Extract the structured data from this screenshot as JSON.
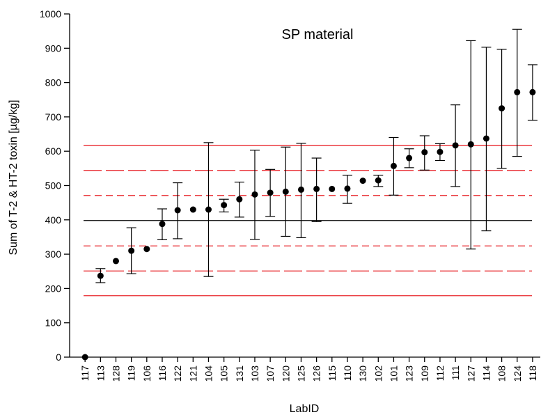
{
  "chart_data": {
    "type": "scatter",
    "title": "",
    "annotation": "SP material",
    "xlabel": "LabID",
    "ylabel": "Sum of T-2 & HT-2 toxin [µg/kg]",
    "ylim": [
      0,
      1000
    ],
    "yticks": [
      0,
      100,
      200,
      300,
      400,
      500,
      600,
      700,
      800,
      900,
      1000
    ],
    "grid": false,
    "categories": [
      "117",
      "113",
      "128",
      "119",
      "106",
      "116",
      "122",
      "121",
      "104",
      "105",
      "131",
      "103",
      "107",
      "120",
      "125",
      "126",
      "115",
      "110",
      "130",
      "102",
      "101",
      "123",
      "109",
      "112",
      "111",
      "127",
      "114",
      "108",
      "124",
      "118"
    ],
    "series": [
      {
        "values": [
          0,
          237,
          280,
          310,
          315,
          388,
          428,
          430,
          430,
          443,
          460,
          474,
          479,
          482,
          488,
          490,
          490,
          491,
          514,
          515,
          557,
          580,
          597,
          598,
          617,
          620,
          637,
          725,
          772,
          772
        ],
        "error_low": [
          null,
          217,
          null,
          243,
          null,
          342,
          345,
          null,
          235,
          423,
          408,
          343,
          410,
          352,
          348,
          395,
          null,
          448,
          null,
          497,
          472,
          552,
          545,
          573,
          497,
          315,
          368,
          550,
          585,
          690
        ],
        "error_high": [
          null,
          258,
          null,
          377,
          null,
          432,
          508,
          null,
          625,
          460,
          510,
          603,
          547,
          612,
          623,
          580,
          null,
          530,
          null,
          530,
          640,
          607,
          645,
          622,
          735,
          922,
          903,
          897,
          955,
          852
        ]
      }
    ],
    "reference_lines": [
      {
        "value": 398,
        "style": "solid",
        "color": "#000000"
      },
      {
        "value": 617,
        "style": "solid",
        "color": "#e8262b"
      },
      {
        "value": 179,
        "style": "solid",
        "color": "#e8262b"
      },
      {
        "value": 544,
        "style": "long-dash",
        "color": "#e8262b"
      },
      {
        "value": 251,
        "style": "long-dash",
        "color": "#e8262b"
      },
      {
        "value": 471,
        "style": "short-dash",
        "color": "#e8262b"
      },
      {
        "value": 324,
        "style": "short-dash",
        "color": "#e8262b"
      }
    ]
  }
}
